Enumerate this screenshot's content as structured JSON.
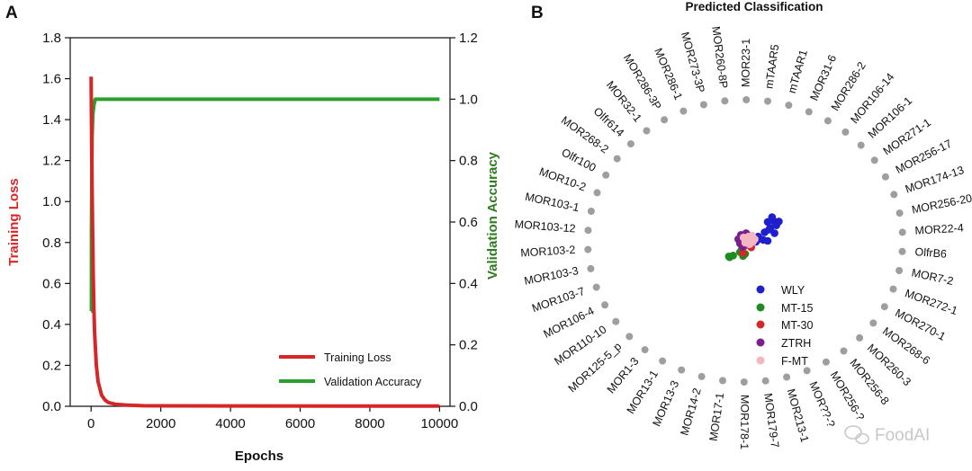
{
  "panels": {
    "a": "A",
    "b": "B"
  },
  "chart_data": [
    {
      "type": "line",
      "xlabel": "Epochs",
      "ylabel": "Training Loss",
      "y2label": "Validation Accuracy",
      "xlim": [
        -600,
        10300
      ],
      "ylim": [
        0,
        1.8
      ],
      "y2lim": [
        0,
        1.2
      ],
      "xticks": [
        "0",
        "2000",
        "4000",
        "6000",
        "8000",
        "10000"
      ],
      "yticks": [
        "0.0",
        "0.2",
        "0.4",
        "0.6",
        "0.8",
        "1.0",
        "1.2",
        "1.4",
        "1.6",
        "1.8"
      ],
      "y2ticks": [
        "0.0",
        "0.2",
        "0.4",
        "0.6",
        "0.8",
        "1.0",
        "1.2"
      ],
      "legend": "lower-right",
      "grid": false,
      "series": [
        {
          "name": "Training Loss",
          "axis": "left",
          "color": "#d62728",
          "x": [
            0,
            20,
            40,
            60,
            80,
            100,
            150,
            200,
            300,
            400,
            500,
            700,
            1000,
            1500,
            2000,
            10000
          ],
          "y": [
            1.61,
            1.2,
            0.9,
            0.65,
            0.48,
            0.36,
            0.2,
            0.12,
            0.055,
            0.03,
            0.018,
            0.01,
            0.006,
            0.003,
            0.002,
            0.001
          ]
        },
        {
          "name": "Validation Accuracy",
          "axis": "right",
          "color": "#2ca02c",
          "x": [
            0,
            10,
            10,
            20,
            30,
            50,
            80,
            120,
            200,
            500,
            10000
          ],
          "y": [
            0.31,
            0.31,
            0.57,
            0.75,
            0.88,
            0.95,
            0.98,
            1.0,
            1.0,
            1.0,
            1.0
          ]
        }
      ]
    },
    {
      "type": "scatter",
      "title": "Predicted Classification",
      "ring_labels": [
        "mTAAR1",
        "MOR31-6",
        "MOR286-2",
        "MOR106-14",
        "MOR106-1",
        "MOR271-1",
        "MOR256-17",
        "MOR174-13",
        "MOR256-20",
        "MOR22-4",
        "OlfrB6",
        "MOR7-2",
        "MOR272-1",
        "MOR270-1",
        "MOR268-6",
        "MOR260-3",
        "MOR256-8",
        "MOR256-?",
        "MOR??-?",
        "MOR213-1",
        "MOR179-7",
        "MOR178-1",
        "MOR17-1",
        "MOR14-2",
        "MOR13-3",
        "MOR13-1",
        "MOR1-3",
        "MOR125-5_p",
        "MOR110-10",
        "MOR106-4",
        "MOR103-7",
        "MOR103-3",
        "MOR103-2",
        "MOR103-12",
        "MOR103-1",
        "MOR10-2",
        "Olfr100",
        "MOR268-2",
        "Olfr614",
        "MOR32-1",
        "MOR286-3P",
        "MOR286-1",
        "MOR273-3P",
        "MOR260-8P",
        "MOR23-1",
        "mTAAR5"
      ],
      "legend": "inside-lower-right",
      "series": [
        {
          "name": "WLY",
          "color": "#1f1fcc",
          "points": [
            [
              0.52,
              0.44
            ],
            [
              0.66,
              0.46
            ],
            [
              0.78,
              0.45
            ],
            [
              0.62,
              0.55
            ],
            [
              0.72,
              0.36
            ],
            [
              0.58,
              0.3
            ],
            [
              0.45,
              0.2
            ],
            [
              0.68,
              0.18
            ],
            [
              0.3,
              0.1
            ],
            [
              0.42,
              0.02
            ],
            [
              0.52,
              0.0
            ],
            [
              0.25,
              -0.02
            ],
            [
              0.34,
              0.05
            ],
            [
              0.55,
              0.26
            ]
          ]
        },
        {
          "name": "MT-15",
          "color": "#1f8a1f",
          "points": [
            [
              -0.38,
              -0.36
            ],
            [
              -0.36,
              -0.38
            ],
            [
              -0.28,
              -0.34
            ],
            [
              -0.12,
              -0.26
            ],
            [
              -0.05,
              -0.35
            ],
            [
              -0.08,
              -0.2
            ],
            [
              0.0,
              -0.3
            ]
          ]
        },
        {
          "name": "MT-30",
          "color": "#d62728",
          "points": [
            [
              -0.05,
              -0.28
            ],
            [
              0.06,
              -0.06
            ],
            [
              -0.1,
              0.04
            ],
            [
              0.0,
              0.12
            ],
            [
              0.1,
              -0.02
            ],
            [
              -0.02,
              -0.12
            ],
            [
              0.14,
              -0.15
            ],
            [
              0.05,
              0.0
            ]
          ]
        },
        {
          "name": "ZTRH",
          "color": "#7b1f8c",
          "points": [
            [
              -0.1,
              0.14
            ],
            [
              -0.16,
              0.04
            ],
            [
              -0.06,
              -0.14
            ],
            [
              0.08,
              0.12
            ],
            [
              0.14,
              0.02
            ],
            [
              -0.12,
              -0.06
            ],
            [
              0.02,
              0.18
            ]
          ]
        },
        {
          "name": "F-MT",
          "color": "#f4b6c2",
          "points": [
            [
              0.04,
              0.02
            ],
            [
              0.12,
              0.06
            ],
            [
              0.0,
              -0.04
            ],
            [
              0.18,
              -0.02
            ],
            [
              0.08,
              0.1
            ],
            [
              -0.04,
              0.08
            ],
            [
              0.16,
              0.12
            ],
            [
              0.1,
              -0.08
            ],
            [
              0.22,
              0.04
            ]
          ]
        }
      ]
    }
  ],
  "watermark": "FoodAI",
  "watermark_icon": "wechat-icon"
}
